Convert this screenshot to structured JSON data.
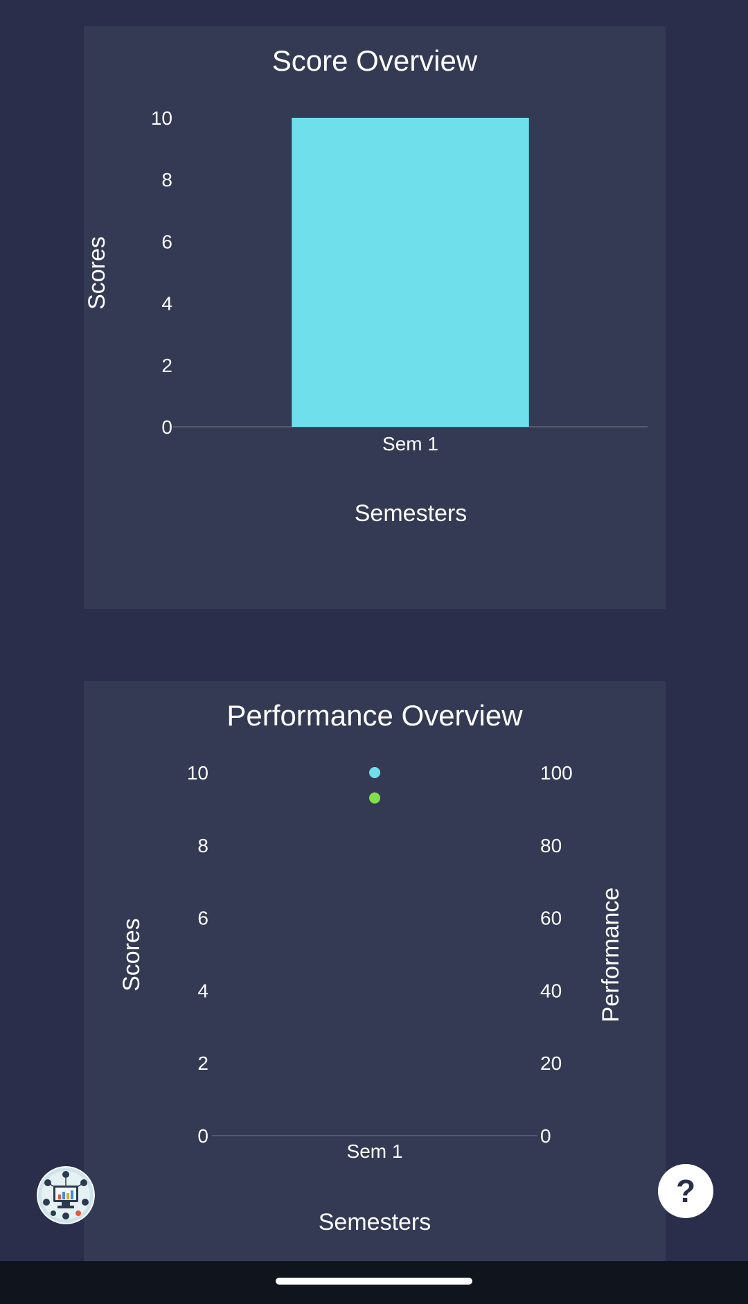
{
  "charts": {
    "score": {
      "title": "Score Overview",
      "ylabel": "Scores",
      "xlabel": "Semesters"
    },
    "performance": {
      "title": "Performance Overview",
      "ylabel_left": "Scores",
      "ylabel_right": "Performance",
      "xlabel": "Semesters"
    }
  },
  "chart_data": [
    {
      "type": "bar",
      "title": "Score Overview",
      "xlabel": "Semesters",
      "ylabel": "Scores",
      "categories": [
        "Sem 1"
      ],
      "values": [
        10
      ],
      "ylim": [
        0,
        10
      ],
      "yticks": [
        0,
        2,
        4,
        6,
        8,
        10
      ],
      "bar_color": "#6fe0eb",
      "grid": false
    },
    {
      "type": "scatter",
      "title": "Performance Overview",
      "xlabel": "Semesters",
      "ylabel": "Scores",
      "ylabel_right": "Performance",
      "categories": [
        "Sem 1"
      ],
      "series": [
        {
          "axis": "left",
          "values": [
            10
          ],
          "color": "#6fe0eb"
        },
        {
          "axis": "right",
          "values": [
            93
          ],
          "color": "#7ee04a"
        }
      ],
      "ylim": [
        0,
        10
      ],
      "yticks": [
        0,
        2,
        4,
        6,
        8,
        10
      ],
      "ylim_right": [
        0,
        100
      ],
      "yticks_right": [
        0,
        20,
        40,
        60,
        80,
        100
      ],
      "grid": false
    }
  ],
  "help": {
    "label": "?"
  },
  "colors": {
    "background": "#2a2e4a",
    "card": "#353a54",
    "accent_cyan": "#6fe0eb",
    "accent_green": "#7ee04a"
  },
  "icons": {
    "help": "question-mark-icon",
    "logo": "analytics-workstation-logo"
  }
}
